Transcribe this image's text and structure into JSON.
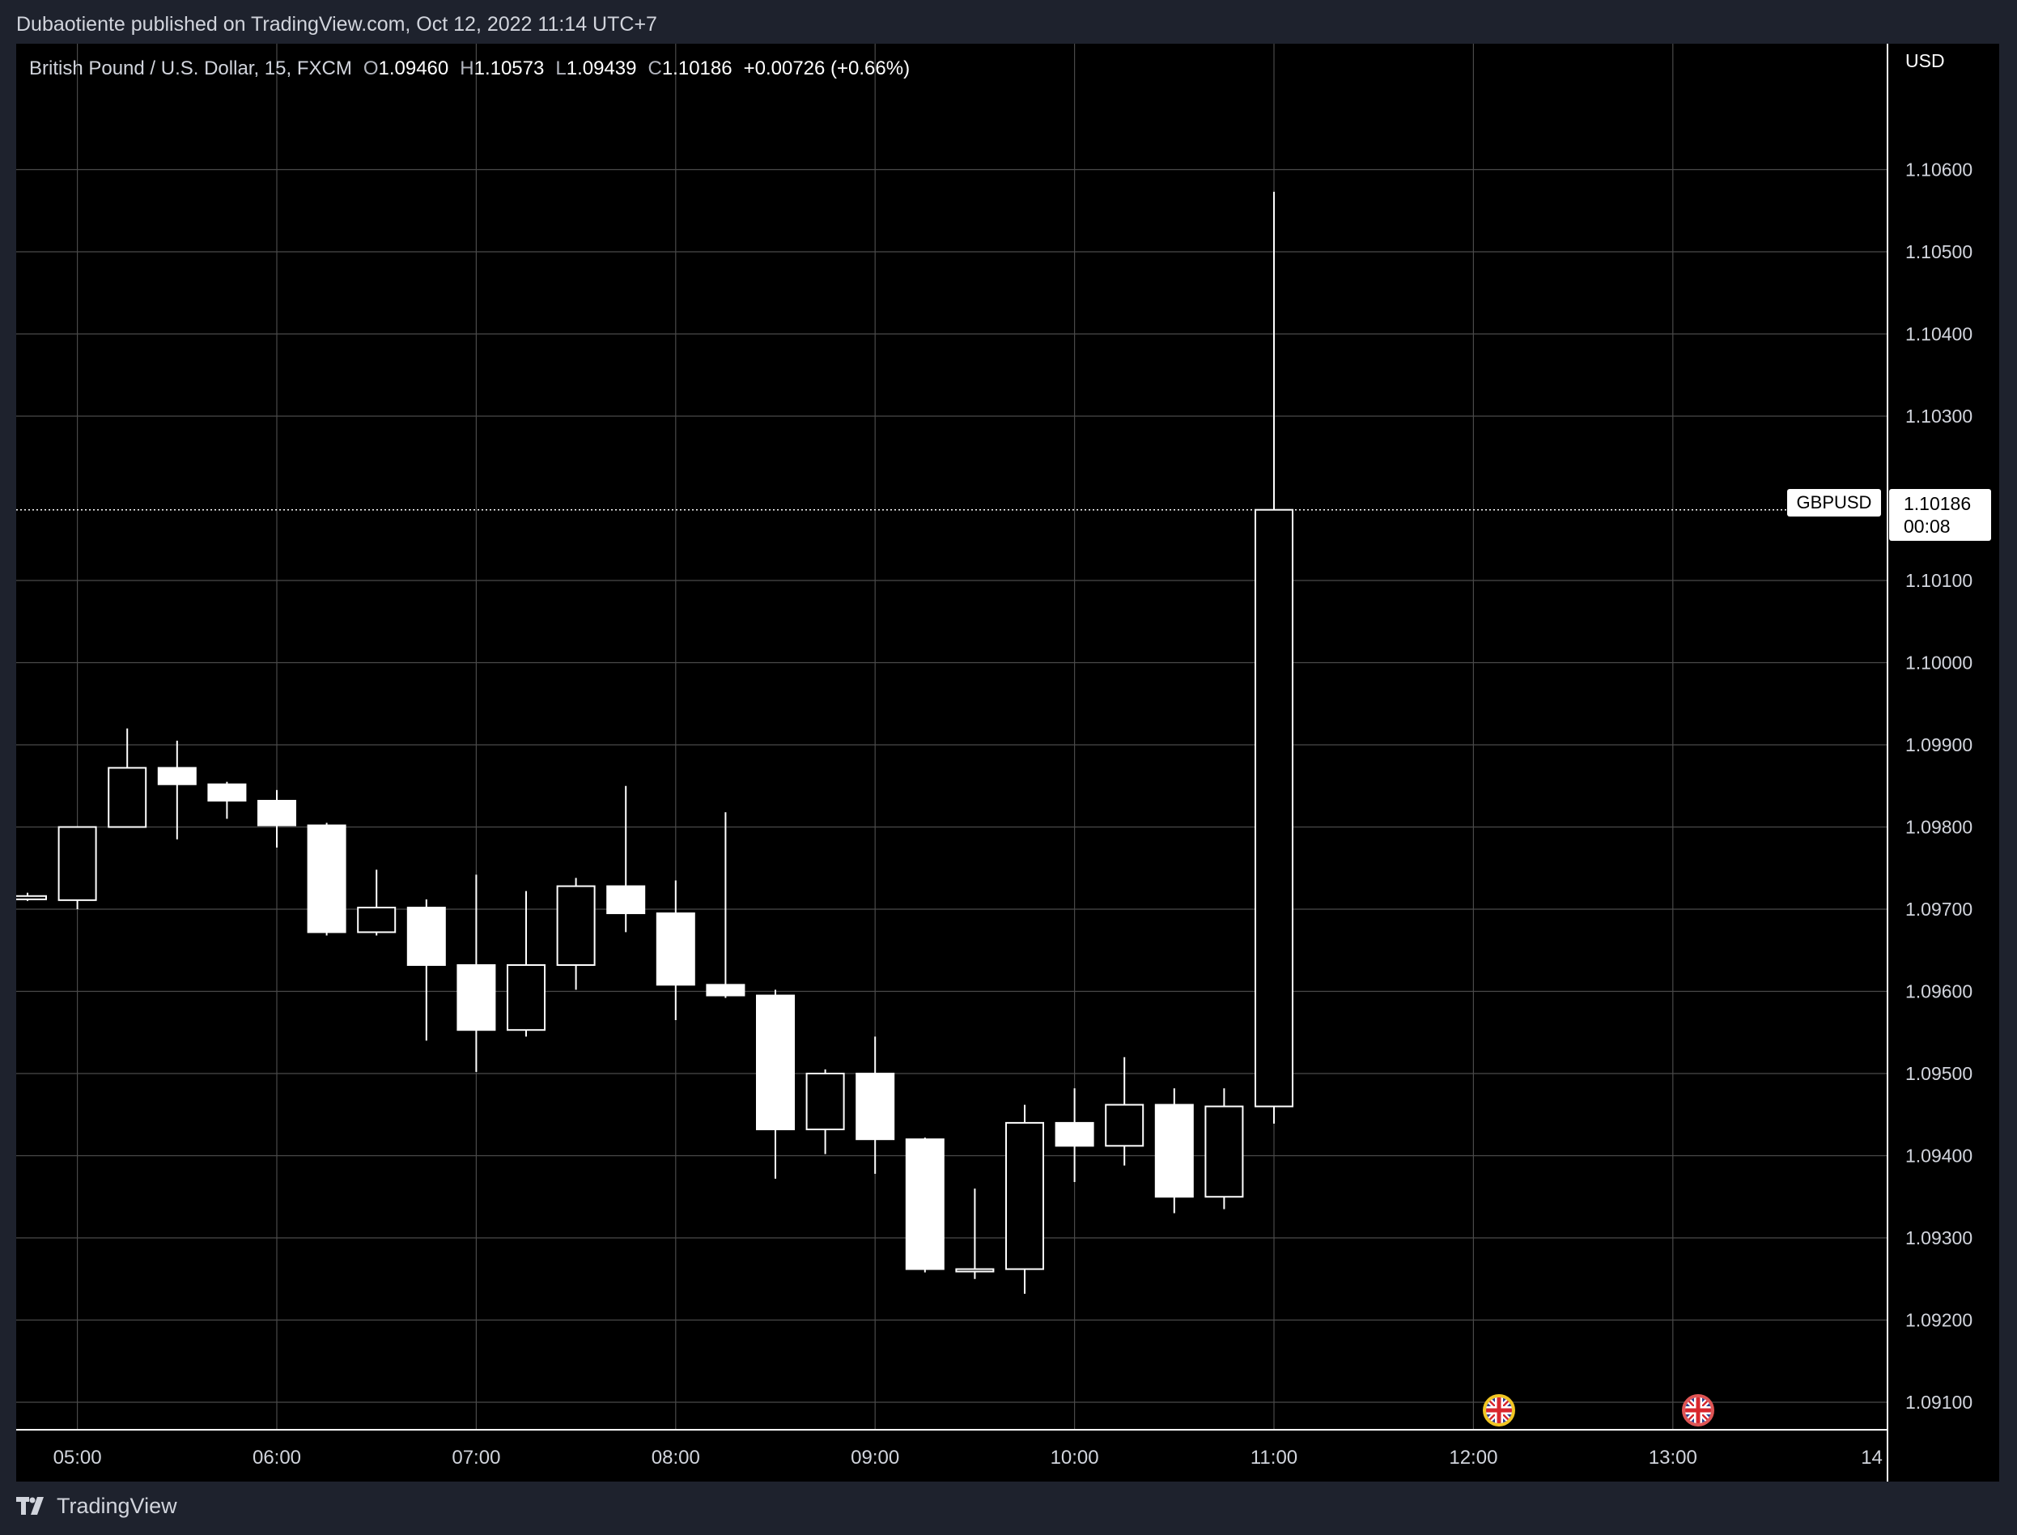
{
  "header": {
    "published_text": "Dubaotiente published on TradingView.com, Oct 12, 2022 11:14 UTC+7"
  },
  "legend": {
    "symbol_text": "British Pound / U.S. Dollar, 15, FXCM",
    "open_label": "O",
    "open_value": "1.09460",
    "high_label": "H",
    "high_value": "1.10573",
    "low_label": "L",
    "low_value": "1.09439",
    "close_label": "C",
    "close_value": "1.10186",
    "change_text": "+0.00726 (+0.66%)"
  },
  "price_axis": {
    "currency": "USD",
    "tick_labels": [
      "1.10600",
      "1.10500",
      "1.10400",
      "1.10300",
      "1.10100",
      "1.10000",
      "1.09900",
      "1.09800",
      "1.09700",
      "1.09600",
      "1.09500",
      "1.09400",
      "1.09300",
      "1.09200",
      "1.09100"
    ]
  },
  "time_axis": {
    "tick_labels": [
      "05:00",
      "06:00",
      "07:00",
      "08:00",
      "09:00",
      "10:00",
      "11:00",
      "12:00",
      "13:00",
      "14"
    ]
  },
  "last_price": {
    "symbol": "GBPUSD",
    "price": "1.10186",
    "countdown": "00:08"
  },
  "events": [
    {
      "time": "12:00",
      "icon": "uk-flag-icon",
      "ring_color": "#f2c623"
    },
    {
      "time": "13:00",
      "icon": "uk-flag-icon",
      "ring_color": "#e05555"
    }
  ],
  "footer": {
    "brand": "TradingView"
  },
  "colors": {
    "background": "#000000",
    "frame": "#1e222d",
    "candle": "#ffffff",
    "grid": "#4a4a4a"
  },
  "chart_data": {
    "type": "candlestick",
    "symbol": "GBPUSD",
    "timeframe": "15",
    "x_unit": "time (15-minute bars)",
    "x_start": "04:45",
    "x_tick_labels": [
      "05:00",
      "06:00",
      "07:00",
      "08:00",
      "09:00",
      "10:00",
      "11:00",
      "12:00",
      "13:00",
      "14"
    ],
    "y_ticks": [
      1.091,
      1.092,
      1.093,
      1.094,
      1.095,
      1.096,
      1.097,
      1.098,
      1.099,
      1.1,
      1.101,
      1.103,
      1.104,
      1.105,
      1.106
    ],
    "ylim": [
      1.0906,
      1.1075
    ],
    "grid": true,
    "candles": [
      {
        "t": "04:45",
        "o": 1.09712,
        "h": 1.0972,
        "l": 1.0971,
        "c": 1.09716
      },
      {
        "t": "05:00",
        "o": 1.09711,
        "h": 1.098,
        "l": 1.097,
        "c": 1.098
      },
      {
        "t": "05:15",
        "o": 1.098,
        "h": 1.0992,
        "l": 1.098,
        "c": 1.09872
      },
      {
        "t": "05:30",
        "o": 1.09872,
        "h": 1.09905,
        "l": 1.09785,
        "c": 1.09852
      },
      {
        "t": "05:45",
        "o": 1.09852,
        "h": 1.09855,
        "l": 1.0981,
        "c": 1.09832
      },
      {
        "t": "06:00",
        "o": 1.09832,
        "h": 1.09845,
        "l": 1.09775,
        "c": 1.09802
      },
      {
        "t": "06:15",
        "o": 1.09802,
        "h": 1.09805,
        "l": 1.09668,
        "c": 1.09672
      },
      {
        "t": "06:30",
        "o": 1.09672,
        "h": 1.09748,
        "l": 1.09668,
        "c": 1.09702
      },
      {
        "t": "06:45",
        "o": 1.09702,
        "h": 1.09712,
        "l": 1.0954,
        "c": 1.09632
      },
      {
        "t": "07:00",
        "o": 1.09632,
        "h": 1.09742,
        "l": 1.09502,
        "c": 1.09553
      },
      {
        "t": "07:15",
        "o": 1.09553,
        "h": 1.09722,
        "l": 1.09545,
        "c": 1.09632
      },
      {
        "t": "07:30",
        "o": 1.09632,
        "h": 1.09738,
        "l": 1.09602,
        "c": 1.09728
      },
      {
        "t": "07:45",
        "o": 1.09728,
        "h": 1.0985,
        "l": 1.09672,
        "c": 1.09695
      },
      {
        "t": "08:00",
        "o": 1.09695,
        "h": 1.09735,
        "l": 1.09565,
        "c": 1.09608
      },
      {
        "t": "08:15",
        "o": 1.09608,
        "h": 1.09818,
        "l": 1.09592,
        "c": 1.09595
      },
      {
        "t": "08:30",
        "o": 1.09595,
        "h": 1.09602,
        "l": 1.09372,
        "c": 1.09432
      },
      {
        "t": "08:45",
        "o": 1.09432,
        "h": 1.09505,
        "l": 1.09402,
        "c": 1.095
      },
      {
        "t": "09:00",
        "o": 1.095,
        "h": 1.09545,
        "l": 1.09378,
        "c": 1.0942
      },
      {
        "t": "09:15",
        "o": 1.0942,
        "h": 1.09422,
        "l": 1.09258,
        "c": 1.09262
      },
      {
        "t": "09:30",
        "o": 1.09262,
        "h": 1.0936,
        "l": 1.0925,
        "c": 1.09262
      },
      {
        "t": "09:45",
        "o": 1.09262,
        "h": 1.09462,
        "l": 1.09232,
        "c": 1.0944
      },
      {
        "t": "10:00",
        "o": 1.0944,
        "h": 1.09482,
        "l": 1.09368,
        "c": 1.09412
      },
      {
        "t": "10:15",
        "o": 1.09412,
        "h": 1.0952,
        "l": 1.09388,
        "c": 1.09462
      },
      {
        "t": "10:30",
        "o": 1.09462,
        "h": 1.09482,
        "l": 1.0933,
        "c": 1.0935
      },
      {
        "t": "10:45",
        "o": 1.0935,
        "h": 1.09482,
        "l": 1.09335,
        "c": 1.0946
      },
      {
        "t": "11:00",
        "o": 1.0946,
        "h": 1.10573,
        "l": 1.09439,
        "c": 1.10186
      }
    ],
    "last_price": 1.10186
  }
}
